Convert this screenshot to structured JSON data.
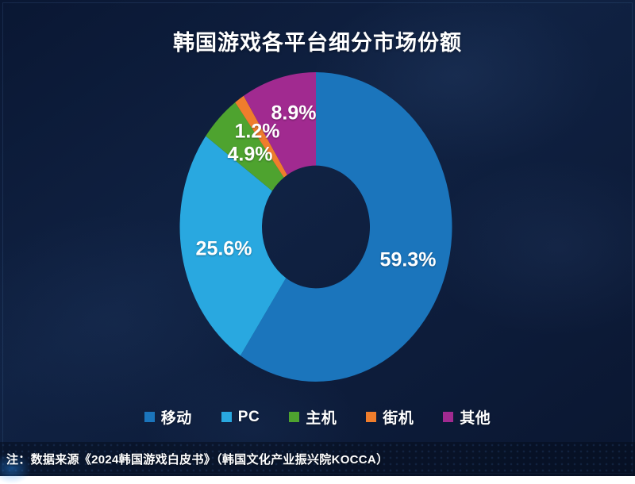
{
  "title": "韩国游戏各平台细分市场份额",
  "footer": {
    "note": "注：数据来源《2024韩国游戏白皮书》（韩国文化产业振兴院KOCCA）"
  },
  "colors": {
    "background": "#0D1C3A",
    "title_text": "#FFFFFF",
    "slice_label_text": "#FFFFFF",
    "legend_text": "#FFFFFF"
  },
  "chart_data": {
    "type": "pie",
    "subtype": "donut",
    "title": "韩国游戏各平台细分市场份额",
    "legend_position": "bottom",
    "start_angle_deg": 0,
    "direction": "clockwise",
    "grid": false,
    "segments": [
      {
        "key": "mobile",
        "label": "移动",
        "value": 59.3,
        "pct_label": "59.3%",
        "color": "#1B75BC"
      },
      {
        "key": "pc",
        "label": "PC",
        "value": 25.6,
        "pct_label": "25.6%",
        "color": "#29A8E0"
      },
      {
        "key": "console",
        "label": "主机",
        "value": 4.9,
        "pct_label": "4.9%",
        "color": "#4EA32F"
      },
      {
        "key": "arcade",
        "label": "街机",
        "value": 1.2,
        "pct_label": "1.2%",
        "color": "#EF7D2C"
      },
      {
        "key": "other",
        "label": "其他",
        "value": 8.9,
        "pct_label": "8.9%",
        "color": "#A12A90"
      }
    ]
  }
}
